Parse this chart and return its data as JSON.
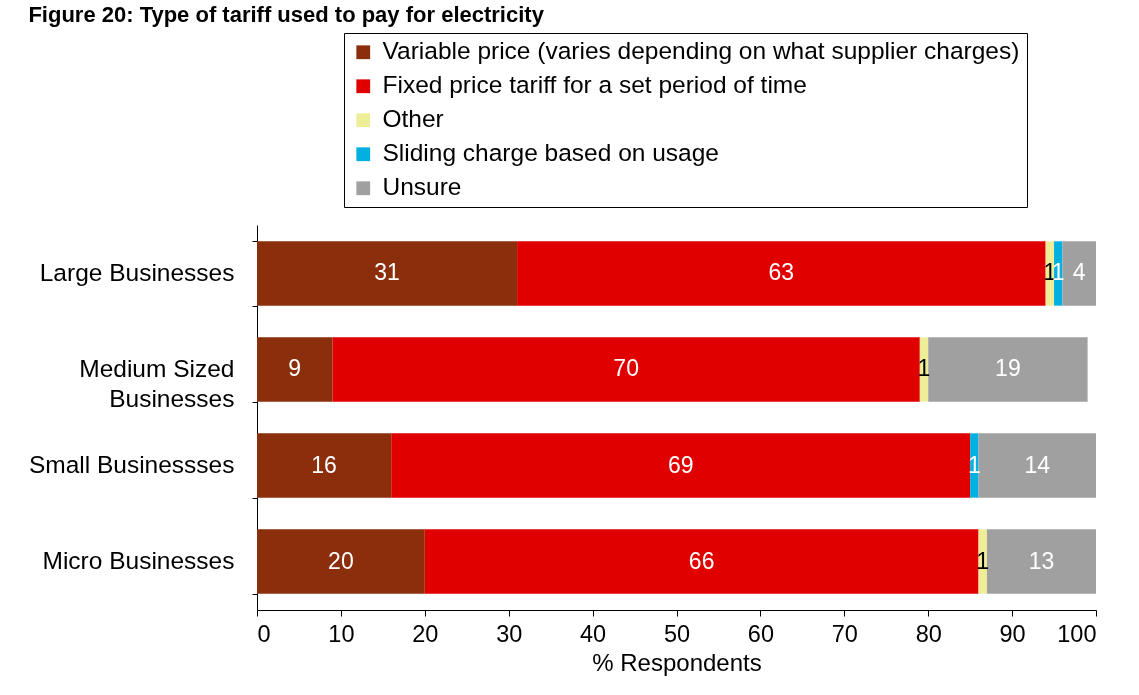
{
  "chart_data": {
    "type": "bar",
    "title": "Figure 20: Type of tariff used to pay for electricity",
    "orientation": "horizontal",
    "stacked": true,
    "data_labels": true,
    "legend": "top",
    "categories": [
      "Large Businesses",
      "Medium Sized Businesses",
      "Small Businessses",
      "Micro Businesses"
    ],
    "series": [
      {
        "name": "Variable price (varies depending on what supplier charges)",
        "color": "#8a2e0c",
        "values": [
          31,
          9,
          16,
          20
        ]
      },
      {
        "name": "Fixed price tariff for a set period of time",
        "color": "#e00000",
        "values": [
          63,
          70,
          69,
          66
        ]
      },
      {
        "name": "Other",
        "color": "#eeee99",
        "values": [
          1,
          1,
          null,
          1
        ]
      },
      {
        "name": "Sliding charge based on usage",
        "color": "#00b0e0",
        "values": [
          1,
          null,
          1,
          null
        ]
      },
      {
        "name": "Unsure",
        "color": "#a0a0a0",
        "values": [
          4,
          19,
          14,
          13
        ]
      }
    ],
    "xlabel": "% Respondents",
    "xlim": [
      0,
      100
    ],
    "xticks": [
      0,
      10,
      20,
      30,
      40,
      50,
      60,
      70,
      80,
      90,
      100
    ]
  }
}
